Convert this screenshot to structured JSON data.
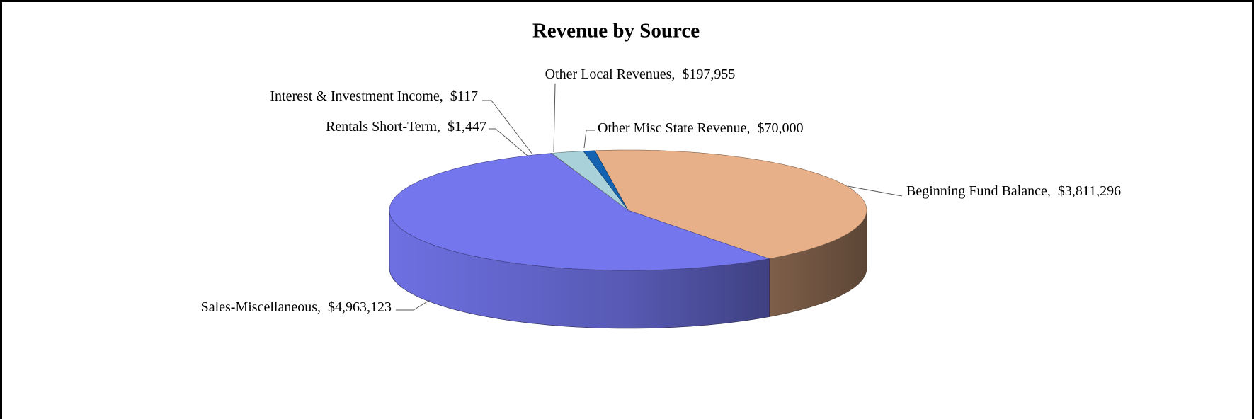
{
  "chart_data": {
    "type": "pie3d",
    "title": "Revenue by Source",
    "categories": [
      "Beginning Fund Balance",
      "Sales-Miscellaneous",
      "Rentals Short-Term",
      "Interest & Investment Income",
      "Other Local Revenues",
      "Other Misc State Revenue"
    ],
    "values": [
      3811296,
      4963123,
      1447,
      117,
      197955,
      70000
    ],
    "value_labels": [
      "$3,811,296",
      "$4,963,123",
      "$1,447",
      "$117",
      "$197,955",
      "$70,000"
    ],
    "label_separator": ",",
    "colors": [
      "#e8b088",
      "#7476ee",
      "#7a1a3a",
      "#f2f0b4",
      "#a9d1d9",
      "#1462b2"
    ]
  }
}
